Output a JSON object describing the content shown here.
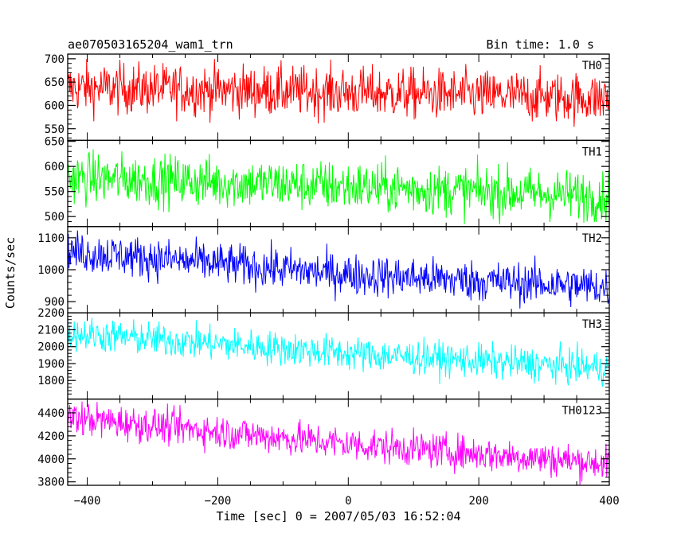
{
  "header": {
    "left_title": "ae070503165204_wam1_trn",
    "right_title": "Bin time: 1.0 s"
  },
  "chart_data": {
    "type": "line",
    "xlabel": "Time [sec] 0 = 2007/05/03 16:52:04",
    "ylabel": "Counts/sec",
    "xlim": [
      -430,
      400
    ],
    "xticks": [
      -400,
      -200,
      0,
      200,
      400
    ],
    "x_sampling": {
      "start": -430,
      "end": 400,
      "step": 1.0
    },
    "grid": false,
    "panels": [
      {
        "name": "TH0",
        "color": "#ff0000",
        "ylim": [
          525,
          710
        ],
        "yticks": [
          550,
          600,
          650,
          700
        ],
        "trend": [
          [
            -430,
            638
          ],
          [
            0,
            628
          ],
          [
            400,
            615
          ]
        ],
        "noise_sd": 27
      },
      {
        "name": "TH1",
        "color": "#00ff00",
        "ylim": [
          480,
          652
        ],
        "yticks": [
          500,
          550,
          600,
          650
        ],
        "trend": [
          [
            -430,
            578
          ],
          [
            0,
            560
          ],
          [
            400,
            540
          ]
        ],
        "noise_sd": 25
      },
      {
        "name": "TH2",
        "color": "#0000ff",
        "ylim": [
          865,
          1135
        ],
        "yticks": [
          900,
          1000,
          1100
        ],
        "trend": [
          [
            -430,
            1058
          ],
          [
            0,
            985
          ],
          [
            400,
            945
          ]
        ],
        "noise_sd": 32
      },
      {
        "name": "TH3",
        "color": "#00ffff",
        "ylim": [
          1690,
          2200
        ],
        "yticks": [
          1800,
          1900,
          2000,
          2100,
          2200
        ],
        "trend": [
          [
            -430,
            2080
          ],
          [
            0,
            1960
          ],
          [
            400,
            1870
          ]
        ],
        "noise_sd": 50
      },
      {
        "name": "TH0123",
        "color": "#ff00ff",
        "ylim": [
          3770,
          4520
        ],
        "yticks": [
          3800,
          4000,
          4200,
          4400
        ],
        "trend": [
          [
            -430,
            4360
          ],
          [
            0,
            4130
          ],
          [
            400,
            3960
          ]
        ],
        "noise_sd": 75
      }
    ]
  }
}
